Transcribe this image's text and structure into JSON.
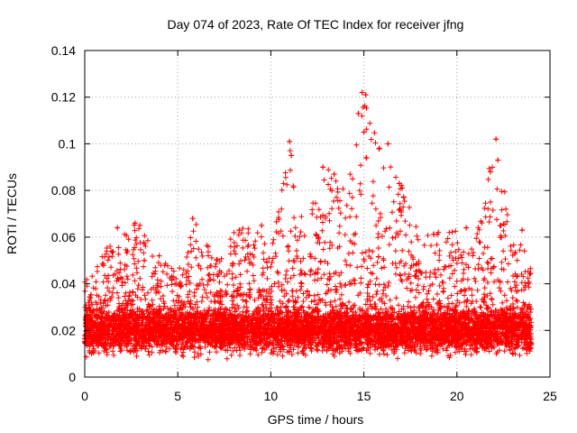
{
  "chart_data": {
    "type": "scatter",
    "title": "Day 074 of 2023, Rate Of TEC Index for receiver jfng",
    "xlabel": "GPS time / hours",
    "ylabel": "ROTI / TECUs",
    "xlim": [
      0,
      25
    ],
    "ylim": [
      0,
      0.14
    ],
    "x_ticks": [
      0,
      5,
      10,
      15,
      20,
      25
    ],
    "x_tick_labels": [
      "0",
      "5",
      "10",
      "15",
      "20",
      "25"
    ],
    "y_ticks": [
      0,
      0.02,
      0.04,
      0.06,
      0.08,
      0.1,
      0.12,
      0.14
    ],
    "y_tick_labels": [
      "0",
      "0.02",
      "0.04",
      "0.06",
      "0.08",
      "0.1",
      "0.12",
      "0.14"
    ],
    "grid": true,
    "marker": "+",
    "series": [
      {
        "name": "ROTI",
        "color": "#ff0000",
        "x_range": [
          0.0,
          24.0
        ],
        "typical_range": [
          0.01,
          0.03
        ],
        "profile_hours": [
          0,
          2,
          3,
          4,
          5,
          6,
          7,
          8,
          9,
          10,
          11,
          12,
          13,
          14,
          15,
          16,
          17,
          18,
          19,
          20,
          21,
          22,
          23,
          24
        ],
        "profile_max": [
          0.045,
          0.064,
          0.066,
          0.052,
          0.045,
          0.068,
          0.05,
          0.063,
          0.065,
          0.055,
          0.101,
          0.07,
          0.09,
          0.085,
          0.122,
          0.1,
          0.083,
          0.06,
          0.062,
          0.064,
          0.06,
          0.102,
          0.063,
          0.05
        ],
        "peaks": [
          {
            "x": 1.75,
            "y": 0.064
          },
          {
            "x": 2.7,
            "y": 0.066
          },
          {
            "x": 3.2,
            "y": 0.05
          },
          {
            "x": 4.0,
            "y": 0.052
          },
          {
            "x": 5.8,
            "y": 0.068
          },
          {
            "x": 8.3,
            "y": 0.063
          },
          {
            "x": 9.5,
            "y": 0.065
          },
          {
            "x": 11.0,
            "y": 0.101
          },
          {
            "x": 11.1,
            "y": 0.095
          },
          {
            "x": 12.8,
            "y": 0.09
          },
          {
            "x": 13.4,
            "y": 0.087
          },
          {
            "x": 14.7,
            "y": 0.113
          },
          {
            "x": 14.9,
            "y": 0.122
          },
          {
            "x": 15.1,
            "y": 0.121
          },
          {
            "x": 15.0,
            "y": 0.105
          },
          {
            "x": 16.3,
            "y": 0.1
          },
          {
            "x": 16.9,
            "y": 0.083
          },
          {
            "x": 19.0,
            "y": 0.062
          },
          {
            "x": 20.5,
            "y": 0.064
          },
          {
            "x": 22.1,
            "y": 0.102
          },
          {
            "x": 22.2,
            "y": 0.093
          },
          {
            "x": 21.8,
            "y": 0.088
          },
          {
            "x": 23.5,
            "y": 0.063
          }
        ]
      }
    ]
  }
}
